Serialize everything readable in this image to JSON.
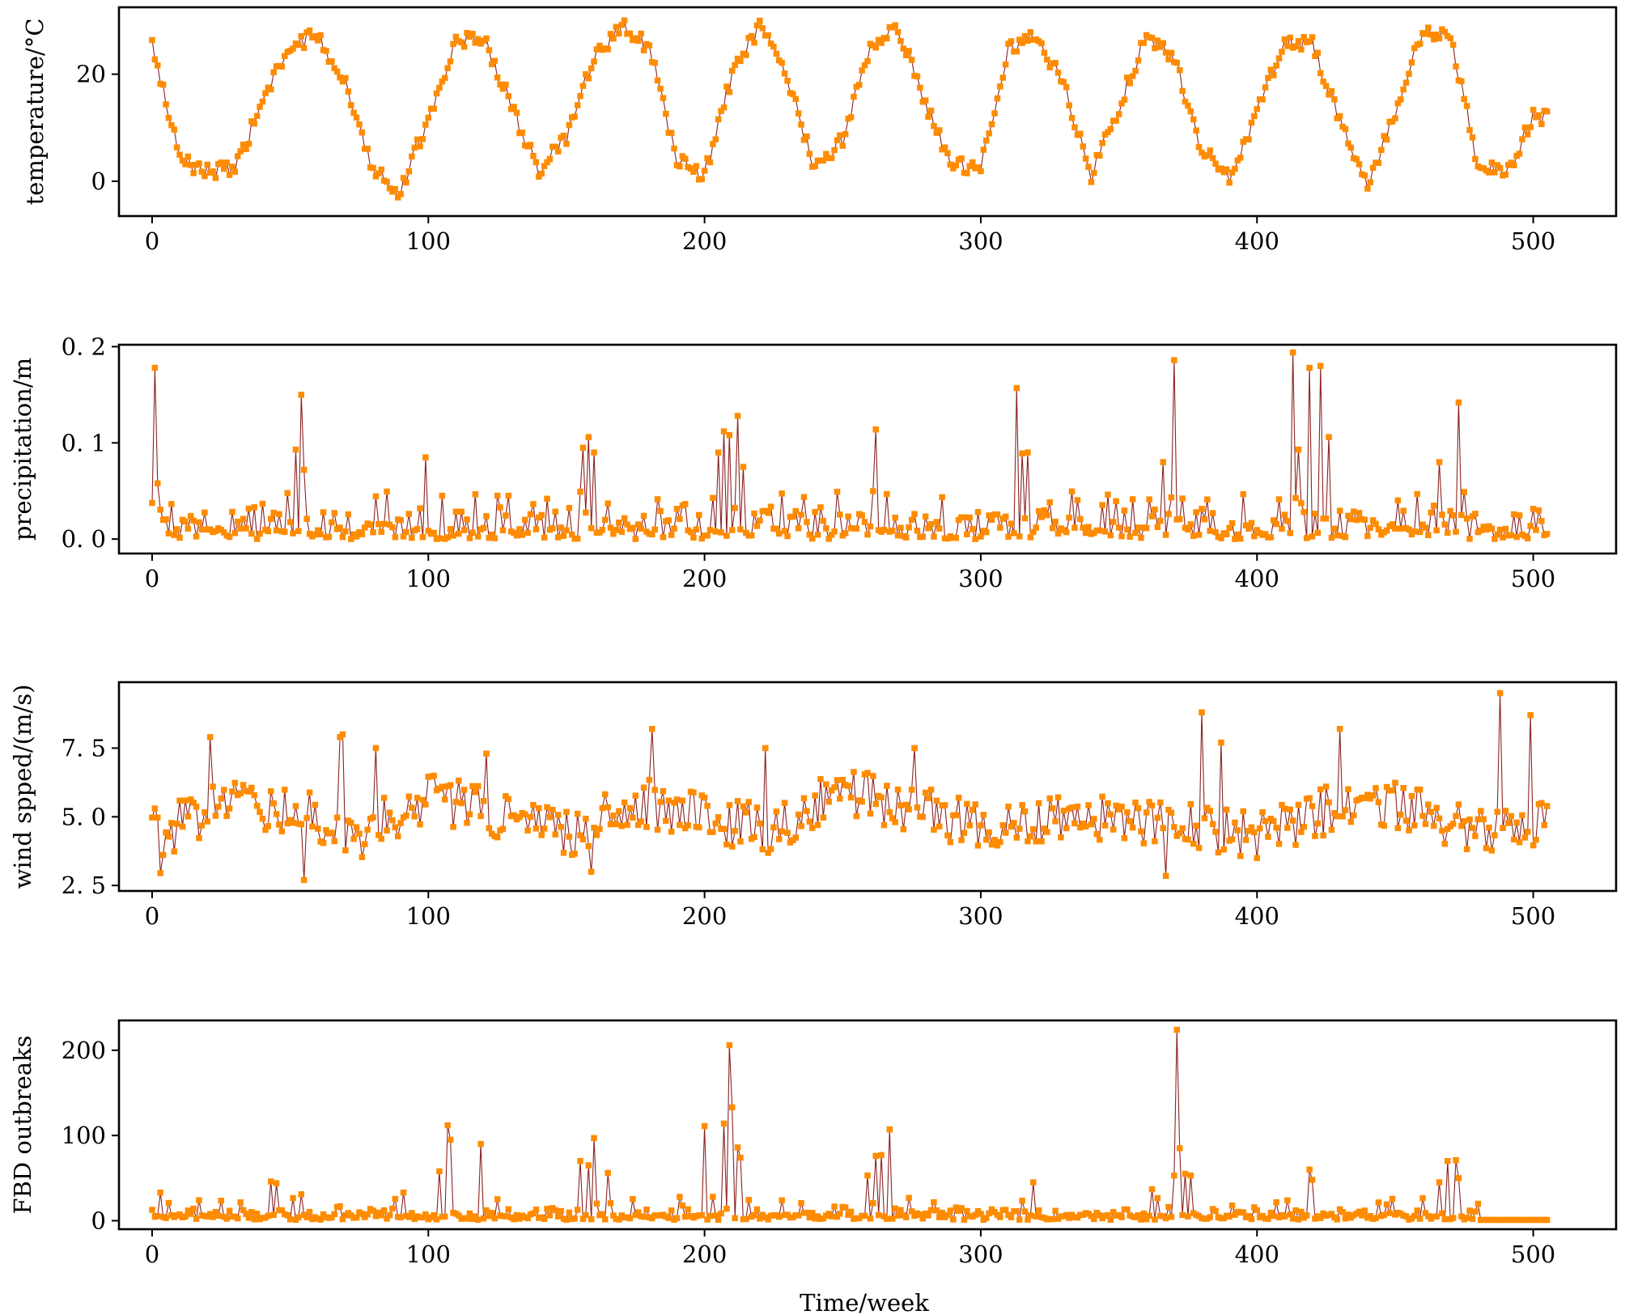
{
  "colors": {
    "line": "#8b2323",
    "marker": "#ff8c00",
    "axes": "#000000",
    "background": "#ffffff"
  },
  "xlabel": "Time/week",
  "chart_data": [
    {
      "type": "line",
      "ylabel": "temperature/°C",
      "xlim": [
        -12,
        530
      ],
      "ylim": [
        -6.5,
        32.5
      ],
      "xticks": [
        0,
        100,
        200,
        300,
        400,
        500
      ],
      "yticks": [
        0,
        20
      ],
      "ytick_labels": [
        "0",
        "20"
      ],
      "series": [
        {
          "pattern": "seasonal_temperature",
          "x_range": [
            0,
            505
          ],
          "values_sampled_every_10_weeks": [
            25.5,
            4,
            2,
            2,
            15,
            25,
            27.5,
            18,
            2.5,
            -2,
            12,
            26,
            27,
            14,
            2,
            8,
            23,
            29,
            25,
            4,
            1,
            20,
            29,
            19,
            2,
            8,
            25,
            29,
            14,
            3,
            3,
            25,
            27,
            18,
            1,
            14,
            27,
            23,
            6,
            0.5,
            13,
            26,
            26,
            11,
            -1,
            13,
            28,
            27,
            3,
            1,
            12
          ]
        }
      ]
    },
    {
      "type": "line",
      "ylabel": "precipitation/m",
      "xlim": [
        -12,
        530
      ],
      "ylim": [
        -0.015,
        0.202
      ],
      "xticks": [
        0,
        100,
        200,
        300,
        400,
        500
      ],
      "yticks": [
        0,
        0.1,
        0.2
      ],
      "ytick_labels": [
        "0. 0",
        "0. 1",
        "0. 2"
      ],
      "series": [
        {
          "pattern": "precipitation_spikes",
          "x_range": [
            0,
            505
          ],
          "peaks": [
            [
              1,
              0.178
            ],
            [
              2,
              0.058
            ],
            [
              52,
              0.093
            ],
            [
              54,
              0.15
            ],
            [
              55,
              0.072
            ],
            [
              99,
              0.085
            ],
            [
              105,
              0.045
            ],
            [
              156,
              0.095
            ],
            [
              158,
              0.106
            ],
            [
              160,
              0.09
            ],
            [
              205,
              0.09
            ],
            [
              207,
              0.112
            ],
            [
              209,
              0.108
            ],
            [
              212,
              0.128
            ],
            [
              214,
              0.075
            ],
            [
              262,
              0.114
            ],
            [
              313,
              0.157
            ],
            [
              315,
              0.089
            ],
            [
              317,
              0.09
            ],
            [
              366,
              0.08
            ],
            [
              370,
              0.186
            ],
            [
              413,
              0.194
            ],
            [
              415,
              0.093
            ],
            [
              419,
              0.178
            ],
            [
              423,
              0.18
            ],
            [
              426,
              0.106
            ],
            [
              466,
              0.08
            ],
            [
              473,
              0.142
            ]
          ]
        }
      ]
    },
    {
      "type": "line",
      "ylabel": "wind spped/(m/s)",
      "xlim": [
        -12,
        530
      ],
      "ylim": [
        2.3,
        9.9
      ],
      "xticks": [
        0,
        100,
        200,
        300,
        400,
        500
      ],
      "yticks": [
        2.5,
        5.0,
        7.5
      ],
      "ytick_labels": [
        "2. 5",
        "5. 0",
        "7. 5"
      ],
      "series": [
        {
          "pattern": "noisy_wind_speed",
          "x_range": [
            0,
            505
          ],
          "base_every_25_weeks": [
            4.2,
            5.5,
            5.3,
            4.3,
            5.8,
            5.0,
            4.4,
            5.6,
            5.0,
            4.5,
            6.0,
            5.2,
            4.8,
            4.9,
            4.9,
            4.8,
            4.3,
            5.2,
            5.4,
            4.6,
            4.6,
            5.6
          ],
          "peaks": [
            [
              1,
              5.3
            ],
            [
              3,
              2.95
            ],
            [
              21,
              7.9
            ],
            [
              68,
              7.9
            ],
            [
              69,
              8.0
            ],
            [
              81,
              7.5
            ],
            [
              121,
              7.3
            ],
            [
              181,
              8.2
            ],
            [
              222,
              7.5
            ],
            [
              276,
              7.5
            ],
            [
              380,
              8.8
            ],
            [
              387,
              7.7
            ],
            [
              430,
              8.2
            ],
            [
              488,
              9.5
            ],
            [
              499,
              8.7
            ],
            [
              503,
              5.5
            ]
          ],
          "dips": [
            [
              55,
              2.7
            ],
            [
              159,
              3.0
            ],
            [
              367,
              2.85
            ]
          ]
        }
      ]
    },
    {
      "type": "line",
      "ylabel": "FBD outbreaks",
      "xlim": [
        -12,
        530
      ],
      "ylim": [
        -10,
        235
      ],
      "xticks": [
        0,
        100,
        200,
        300,
        400,
        500
      ],
      "yticks": [
        0,
        100,
        200
      ],
      "ytick_labels": [
        "0",
        "100",
        "200"
      ],
      "series": [
        {
          "pattern": "outbreak_spikes",
          "x_range": [
            0,
            505
          ],
          "peaks": [
            [
              3,
              33
            ],
            [
              17,
              24
            ],
            [
              43,
              46
            ],
            [
              45,
              44
            ],
            [
              54,
              31
            ],
            [
              91,
              33
            ],
            [
              104,
              58
            ],
            [
              107,
              112
            ],
            [
              108,
              95
            ],
            [
              119,
              90
            ],
            [
              155,
              70
            ],
            [
              158,
              65
            ],
            [
              160,
              97
            ],
            [
              165,
              56
            ],
            [
              200,
              111
            ],
            [
              203,
              28
            ],
            [
              207,
              114
            ],
            [
              209,
              206
            ],
            [
              210,
              133
            ],
            [
              212,
              86
            ],
            [
              213,
              74
            ],
            [
              259,
              53
            ],
            [
              262,
              76
            ],
            [
              264,
              77
            ],
            [
              267,
              107
            ],
            [
              319,
              45
            ],
            [
              362,
              37
            ],
            [
              370,
              53
            ],
            [
              371,
              224
            ],
            [
              372,
              85
            ],
            [
              374,
              55
            ],
            [
              376,
              53
            ],
            [
              419,
              60
            ],
            [
              420,
              48
            ],
            [
              466,
              45
            ],
            [
              469,
              70
            ],
            [
              472,
              71
            ],
            [
              473,
              50
            ]
          ]
        }
      ]
    }
  ]
}
